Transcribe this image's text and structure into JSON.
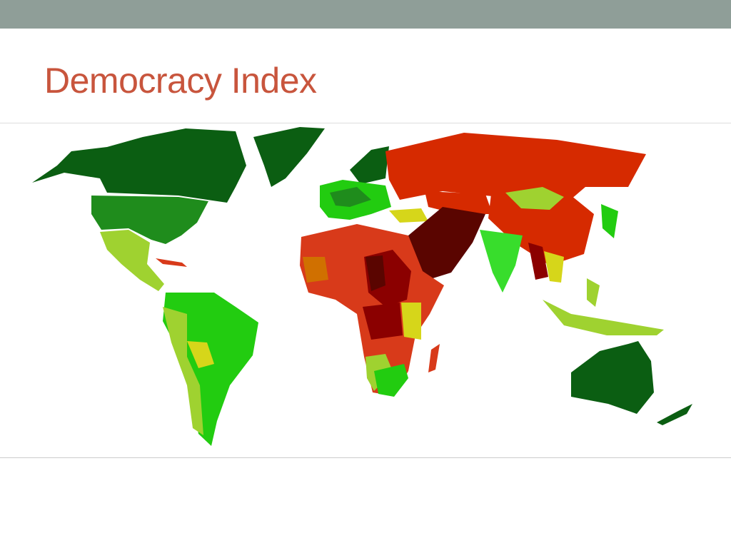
{
  "header": {
    "title": "Democracy Index"
  }
}
